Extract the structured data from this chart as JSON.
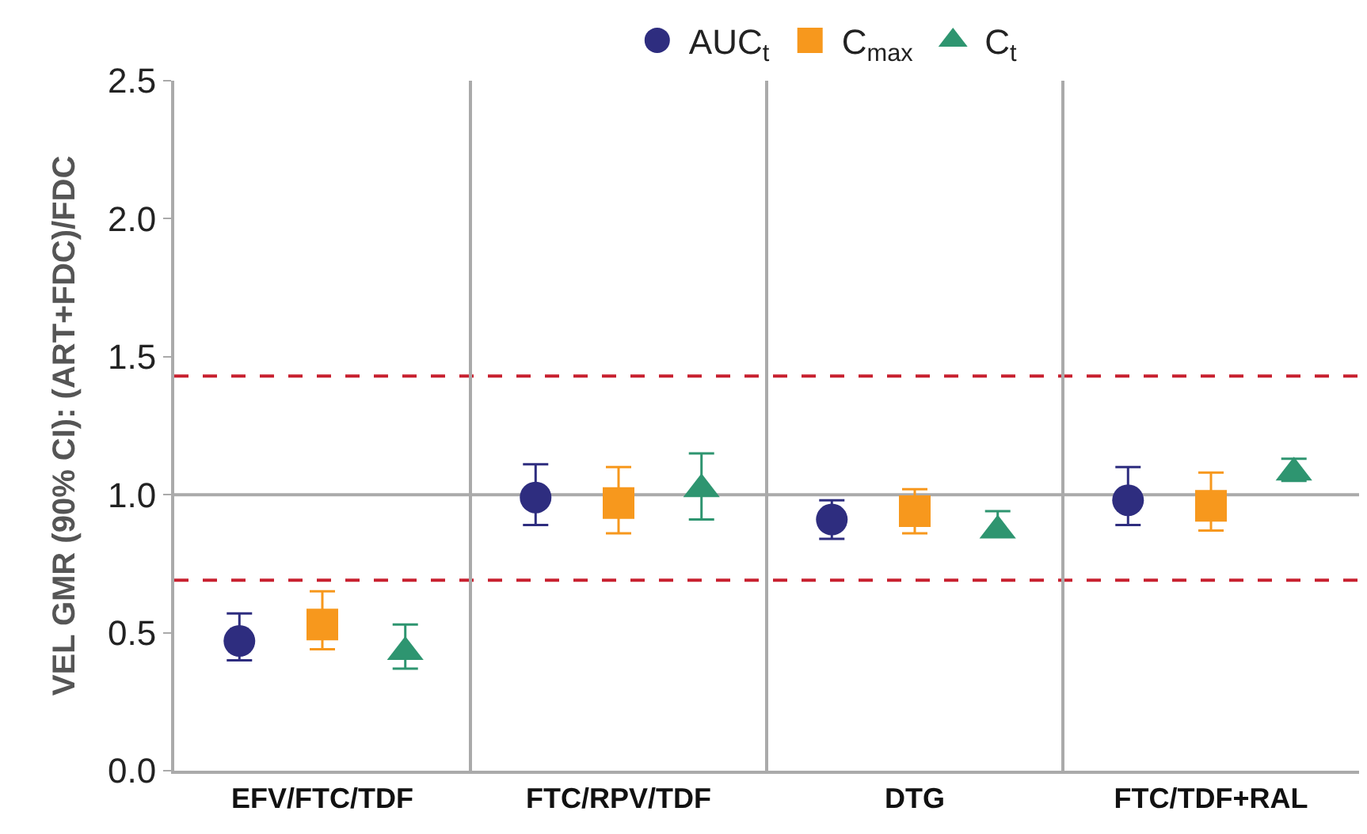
{
  "chart_data": {
    "type": "scatter",
    "ylabel": "VEL GMR (90% CI): (ART+FDC)/FDC",
    "categories": [
      "EFV/FTC/TDF",
      "FTC/RPV/TDF",
      "DTG",
      "FTC/TDF+RAL"
    ],
    "series": [
      {
        "name": "AUC$_{t}$",
        "color": "#2e2d7f",
        "marker": "circle",
        "values": [
          0.47,
          0.99,
          0.91,
          0.98
        ],
        "errors": [
          [
            0.4,
            0.57
          ],
          [
            0.89,
            1.11
          ],
          [
            0.84,
            0.98
          ],
          [
            0.89,
            1.1
          ]
        ]
      },
      {
        "name": "C$_{max}$",
        "color": "#f7981d",
        "marker": "square",
        "values": [
          0.53,
          0.97,
          0.94,
          0.96
        ],
        "errors": [
          [
            0.44,
            0.65
          ],
          [
            0.86,
            1.1
          ],
          [
            0.86,
            1.02
          ],
          [
            0.87,
            1.08
          ]
        ]
      },
      {
        "name": "C$_{t}$",
        "color": "#2e9570",
        "marker": "triangle",
        "values": [
          0.43,
          1.02,
          0.87,
          1.08
        ],
        "errors": [
          [
            0.37,
            0.53
          ],
          [
            0.91,
            1.15
          ],
          [
            0.86,
            0.94
          ],
          [
            1.05,
            1.13
          ]
        ]
      }
    ],
    "ylim": [
      0,
      2.5
    ],
    "yticks": [
      {
        "value": 0,
        "label": "0.0"
      },
      0.5,
      {
        "value": 1,
        "label": "1.0"
      },
      1.5,
      {
        "value": 2,
        "label": "2.0"
      },
      2.5
    ],
    "ref_lines": [
      {
        "axis": "y",
        "value": 1.0,
        "color": "#aaaaaa",
        "line_style": "solid"
      },
      {
        "axis": "y",
        "value": 0.69,
        "color": "#c8202f",
        "line_style": "dashed"
      },
      {
        "axis": "y",
        "value": 1.43,
        "color": "#c8202f",
        "line_style": "dashed"
      }
    ],
    "grid": false,
    "legend": "top"
  }
}
